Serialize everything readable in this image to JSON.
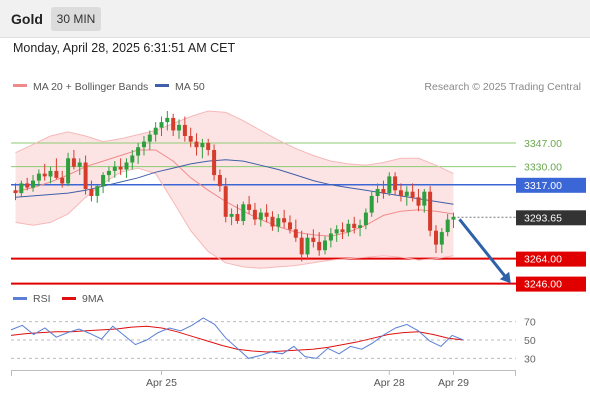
{
  "header": {
    "title": "Gold",
    "timeframe": "30 MIN"
  },
  "datetime": "Monday, April 28, 2025 6:31:51 AM CET",
  "legend": {
    "ma20": {
      "label": "MA 20 + Bollinger Bands",
      "color": "#f08a8a"
    },
    "ma50": {
      "label": "MA 50",
      "color": "#3f5fa8"
    },
    "credit": "Research © 2025 Trading Central"
  },
  "rsi_legend": {
    "rsi": {
      "label": "RSI",
      "color": "#5b7fd6"
    },
    "ma9": {
      "label": "9MA",
      "color": "#e01010"
    }
  },
  "colors": {
    "up": "#2e9e3e",
    "down": "#d63c2c",
    "support": "#e00000",
    "pivot": "#3b66d6",
    "resistance": "#8ccc74",
    "band": "#fde4e4",
    "arrow": "#2e62a8"
  },
  "levels": {
    "r2": {
      "value": 3347,
      "label": "3347.00"
    },
    "r1": {
      "value": 3330,
      "label": "3330.00"
    },
    "pivot": {
      "value": 3317,
      "label": "3317.00"
    },
    "current": {
      "value": 3293.65,
      "label": "3293.65"
    },
    "s1": {
      "value": 3264,
      "label": "3264.00"
    },
    "s2": {
      "value": 3246,
      "label": "3246.00"
    }
  },
  "chart_data": {
    "type": "candlestick",
    "ylim": [
      3235,
      3380
    ],
    "x_tick_labels": [
      {
        "label": "Apr 25",
        "index": 25
      },
      {
        "label": "Apr 28",
        "index": 64
      },
      {
        "label": "Apr 29",
        "index": 75
      }
    ],
    "candles": [
      [
        3313,
        3318,
        3306,
        3311
      ],
      [
        3311,
        3320,
        3308,
        3318
      ],
      [
        3318,
        3322,
        3313,
        3315
      ],
      [
        3315,
        3324,
        3312,
        3320
      ],
      [
        3320,
        3328,
        3316,
        3325
      ],
      [
        3325,
        3332,
        3320,
        3323
      ],
      [
        3323,
        3330,
        3318,
        3327
      ],
      [
        3327,
        3336,
        3321,
        3322
      ],
      [
        3322,
        3327,
        3315,
        3318
      ],
      [
        3318,
        3340,
        3316,
        3336
      ],
      [
        3336,
        3342,
        3328,
        3330
      ],
      [
        3330,
        3336,
        3324,
        3333
      ],
      [
        3333,
        3338,
        3310,
        3314
      ],
      [
        3314,
        3320,
        3305,
        3309
      ],
      [
        3309,
        3317,
        3304,
        3316
      ],
      [
        3316,
        3326,
        3311,
        3324
      ],
      [
        3324,
        3330,
        3319,
        3327
      ],
      [
        3327,
        3334,
        3322,
        3330
      ],
      [
        3330,
        3336,
        3324,
        3328
      ],
      [
        3328,
        3336,
        3322,
        3333
      ],
      [
        3333,
        3342,
        3328,
        3338
      ],
      [
        3338,
        3347,
        3332,
        3344
      ],
      [
        3344,
        3352,
        3338,
        3348
      ],
      [
        3348,
        3356,
        3342,
        3353
      ],
      [
        3353,
        3362,
        3348,
        3358
      ],
      [
        3358,
        3366,
        3352,
        3362
      ],
      [
        3362,
        3370,
        3356,
        3365
      ],
      [
        3365,
        3368,
        3352,
        3356
      ],
      [
        3356,
        3364,
        3350,
        3360
      ],
      [
        3360,
        3366,
        3348,
        3352
      ],
      [
        3352,
        3358,
        3344,
        3348
      ],
      [
        3348,
        3354,
        3338,
        3344
      ],
      [
        3344,
        3350,
        3336,
        3347
      ],
      [
        3347,
        3350,
        3338,
        3342
      ],
      [
        3342,
        3346,
        3320,
        3324
      ],
      [
        3324,
        3328,
        3312,
        3316
      ],
      [
        3316,
        3322,
        3290,
        3294
      ],
      [
        3294,
        3300,
        3288,
        3296
      ],
      [
        3296,
        3303,
        3289,
        3291
      ],
      [
        3291,
        3305,
        3288,
        3303
      ],
      [
        3303,
        3309,
        3296,
        3299
      ],
      [
        3299,
        3304,
        3288,
        3292
      ],
      [
        3292,
        3300,
        3287,
        3297
      ],
      [
        3297,
        3303,
        3290,
        3294
      ],
      [
        3294,
        3298,
        3284,
        3287
      ],
      [
        3287,
        3296,
        3283,
        3293
      ],
      [
        3293,
        3299,
        3286,
        3290
      ],
      [
        3290,
        3295,
        3282,
        3285
      ],
      [
        3285,
        3292,
        3276,
        3279
      ],
      [
        3279,
        3284,
        3262,
        3267
      ],
      [
        3267,
        3282,
        3263,
        3279
      ],
      [
        3279,
        3285,
        3272,
        3276
      ],
      [
        3276,
        3283,
        3266,
        3270
      ],
      [
        3270,
        3280,
        3267,
        3277
      ],
      [
        3277,
        3286,
        3272,
        3282
      ],
      [
        3282,
        3288,
        3276,
        3285
      ],
      [
        3285,
        3290,
        3278,
        3283
      ],
      [
        3283,
        3292,
        3280,
        3289
      ],
      [
        3289,
        3294,
        3282,
        3286
      ],
      [
        3286,
        3292,
        3280,
        3288
      ],
      [
        3288,
        3300,
        3285,
        3297
      ],
      [
        3297,
        3312,
        3294,
        3309
      ],
      [
        3309,
        3318,
        3304,
        3314
      ],
      [
        3314,
        3320,
        3307,
        3311
      ],
      [
        3311,
        3326,
        3309,
        3323
      ],
      [
        3323,
        3326,
        3310,
        3313
      ],
      [
        3313,
        3318,
        3305,
        3309
      ],
      [
        3309,
        3316,
        3302,
        3312
      ],
      [
        3312,
        3318,
        3305,
        3308
      ],
      [
        3308,
        3314,
        3298,
        3302
      ],
      [
        3302,
        3314,
        3297,
        3312
      ],
      [
        3312,
        3316,
        3280,
        3284
      ],
      [
        3284,
        3288,
        3268,
        3274
      ],
      [
        3274,
        3286,
        3268,
        3283
      ],
      [
        3283,
        3296,
        3280,
        3292
      ],
      [
        3292,
        3297,
        3286,
        3294
      ]
    ],
    "bollinger": {
      "upper": [
        3340,
        3346,
        3352,
        3355,
        3352,
        3348,
        3350,
        3353,
        3356,
        3361,
        3366,
        3370,
        3369,
        3363,
        3356,
        3349,
        3343,
        3338,
        3334,
        3332,
        3331,
        3333,
        3336,
        3336,
        3331,
        3325
      ],
      "middle": [
        3312,
        3315,
        3319,
        3324,
        3330,
        3334,
        3338,
        3342,
        3342,
        3334,
        3322,
        3313,
        3305,
        3298,
        3292,
        3287,
        3283,
        3281,
        3280,
        3283,
        3288,
        3295,
        3298,
        3299,
        3298,
        3296
      ],
      "lower": [
        3290,
        3288,
        3290,
        3296,
        3308,
        3318,
        3326,
        3329,
        3325,
        3305,
        3284,
        3269,
        3261,
        3258,
        3257,
        3258,
        3259,
        3261,
        3263,
        3264,
        3265,
        3266,
        3265,
        3263,
        3264,
        3266
      ]
    },
    "ma50": [
      3308,
      3309,
      3310,
      3311,
      3313,
      3316,
      3319,
      3322,
      3326,
      3329,
      3332,
      3334,
      3335,
      3334,
      3331,
      3328,
      3324,
      3320,
      3317,
      3315,
      3313,
      3311,
      3309,
      3307,
      3305,
      3303
    ],
    "rsi": [
      61,
      66,
      56,
      63,
      53,
      58,
      62,
      57,
      51,
      65,
      55,
      45,
      50,
      58,
      63,
      60,
      66,
      74,
      67,
      52,
      41,
      30,
      33,
      37,
      35,
      43,
      32,
      30,
      41,
      35,
      43,
      40,
      47,
      56,
      63,
      67,
      60,
      49,
      43,
      55,
      50
    ],
    "rsi_ma9": [
      55,
      57,
      58,
      59,
      59,
      60,
      61,
      62,
      64,
      65,
      63,
      59,
      54,
      49,
      44,
      40,
      38,
      37,
      38,
      39,
      40,
      42,
      45,
      48,
      52,
      56,
      58,
      59,
      56,
      52,
      50
    ]
  },
  "rsi_axis": {
    "ticks": [
      {
        "value": 70,
        "label": "70"
      },
      {
        "value": 50,
        "label": "50"
      },
      {
        "value": 30,
        "label": "30"
      }
    ]
  }
}
